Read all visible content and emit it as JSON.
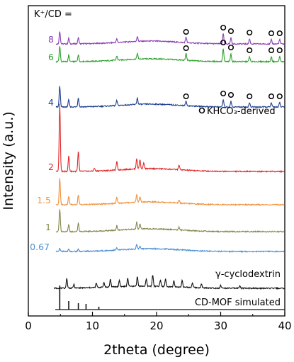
{
  "chart_data": {
    "type": "line",
    "xlabel": "2theta (degree)",
    "ylabel": "Intensity (a.u.)",
    "xlim": [
      0,
      40
    ],
    "x_ticks": [
      "0",
      "10",
      "20",
      "30",
      "40"
    ],
    "grid": false,
    "legend_header": "K⁺/CD =",
    "marker_legend": "KHCO₃-derived",
    "series": [
      {
        "name": "8",
        "color": "#8a3fb3",
        "baseline_rank": 8,
        "sharp": [
          [
            4.9,
            18
          ],
          [
            6.3,
            8
          ],
          [
            7.8,
            9
          ],
          [
            13.8,
            5
          ],
          [
            17.0,
            7
          ],
          [
            24.6,
            8
          ],
          [
            30.4,
            14
          ],
          [
            31.6,
            9
          ],
          [
            34.5,
            7
          ],
          [
            37.9,
            6
          ],
          [
            39.2,
            6
          ]
        ],
        "khco3_peaks": [
          24.6,
          30.4,
          31.6,
          34.5,
          37.9,
          39.2
        ]
      },
      {
        "name": "6",
        "color": "#2ea02e",
        "baseline_rank": 7,
        "sharp": [
          [
            4.9,
            22
          ],
          [
            6.3,
            9
          ],
          [
            7.8,
            10
          ],
          [
            13.8,
            6
          ],
          [
            17.0,
            8
          ],
          [
            24.6,
            10
          ],
          [
            30.4,
            18
          ],
          [
            31.6,
            11
          ],
          [
            34.5,
            7
          ],
          [
            37.9,
            7
          ],
          [
            39.2,
            7
          ]
        ],
        "khco3_peaks": [
          24.6,
          30.4,
          31.6,
          34.5,
          37.9,
          39.2
        ]
      },
      {
        "name": "4",
        "color": "#1f3f8f",
        "baseline_rank": 6,
        "sharp": [
          [
            4.9,
            30
          ],
          [
            6.3,
            10
          ],
          [
            7.8,
            13
          ],
          [
            13.8,
            7
          ],
          [
            17.0,
            9
          ],
          [
            24.6,
            6
          ],
          [
            30.4,
            10
          ],
          [
            31.6,
            8
          ],
          [
            34.5,
            6
          ],
          [
            37.9,
            6
          ],
          [
            39.2,
            6
          ]
        ],
        "khco3_peaks": [
          24.6,
          30.4,
          31.6,
          34.5,
          37.9,
          39.2
        ]
      },
      {
        "name": "2",
        "color": "#e02a2a",
        "baseline_rank": 5,
        "sharp": [
          [
            4.9,
            95
          ],
          [
            6.3,
            22
          ],
          [
            7.8,
            28
          ],
          [
            10.3,
            4
          ],
          [
            13.8,
            12
          ],
          [
            16.9,
            15
          ],
          [
            17.4,
            13
          ],
          [
            18.0,
            9
          ],
          [
            23.5,
            7
          ]
        ],
        "khco3_peaks": []
      },
      {
        "name": "1.5",
        "color": "#f0903a",
        "baseline_rank": 4,
        "sharp": [
          [
            4.9,
            38
          ],
          [
            6.3,
            12
          ],
          [
            7.8,
            14
          ],
          [
            13.8,
            8
          ],
          [
            16.9,
            11
          ],
          [
            17.4,
            8
          ],
          [
            23.5,
            4
          ]
        ],
        "khco3_peaks": []
      },
      {
        "name": "1",
        "color": "#86874a",
        "baseline_rank": 3,
        "sharp": [
          [
            4.9,
            32
          ],
          [
            6.3,
            10
          ],
          [
            7.8,
            12
          ],
          [
            13.8,
            6
          ],
          [
            16.9,
            10
          ],
          [
            17.4,
            7
          ],
          [
            23.5,
            4
          ]
        ],
        "khco3_peaks": []
      },
      {
        "name": "0.67",
        "color": "#4a8fd0",
        "baseline_rank": 2,
        "sharp": [
          [
            4.9,
            5
          ],
          [
            6.3,
            3
          ],
          [
            7.8,
            3
          ],
          [
            13.8,
            3
          ],
          [
            16.9,
            6
          ],
          [
            17.4,
            4
          ]
        ],
        "khco3_peaks": []
      },
      {
        "name": "γ-cyclodextrin",
        "color": "#111111",
        "baseline_rank": 1,
        "sharp": [
          [
            6.0,
            14
          ],
          [
            7.1,
            5
          ],
          [
            10.6,
            6
          ],
          [
            11.8,
            7
          ],
          [
            12.8,
            11
          ],
          [
            14.2,
            9
          ],
          [
            15.5,
            12
          ],
          [
            17.0,
            14
          ],
          [
            18.4,
            10
          ],
          [
            19.4,
            16
          ],
          [
            20.6,
            9
          ],
          [
            21.4,
            11
          ],
          [
            22.7,
            8
          ],
          [
            24.0,
            10
          ],
          [
            25.6,
            7
          ],
          [
            27.0,
            5
          ],
          [
            30.0,
            4
          ],
          [
            33.0,
            3
          ]
        ],
        "khco3_peaks": []
      },
      {
        "name": "CD-MOF simulated",
        "color": "#111111",
        "baseline_rank": 0,
        "stick": true,
        "sharp": [
          [
            4.9,
            34
          ],
          [
            6.3,
            12
          ],
          [
            7.8,
            9
          ],
          [
            9.0,
            8
          ],
          [
            11.0,
            4
          ]
        ],
        "khco3_peaks": []
      }
    ]
  }
}
